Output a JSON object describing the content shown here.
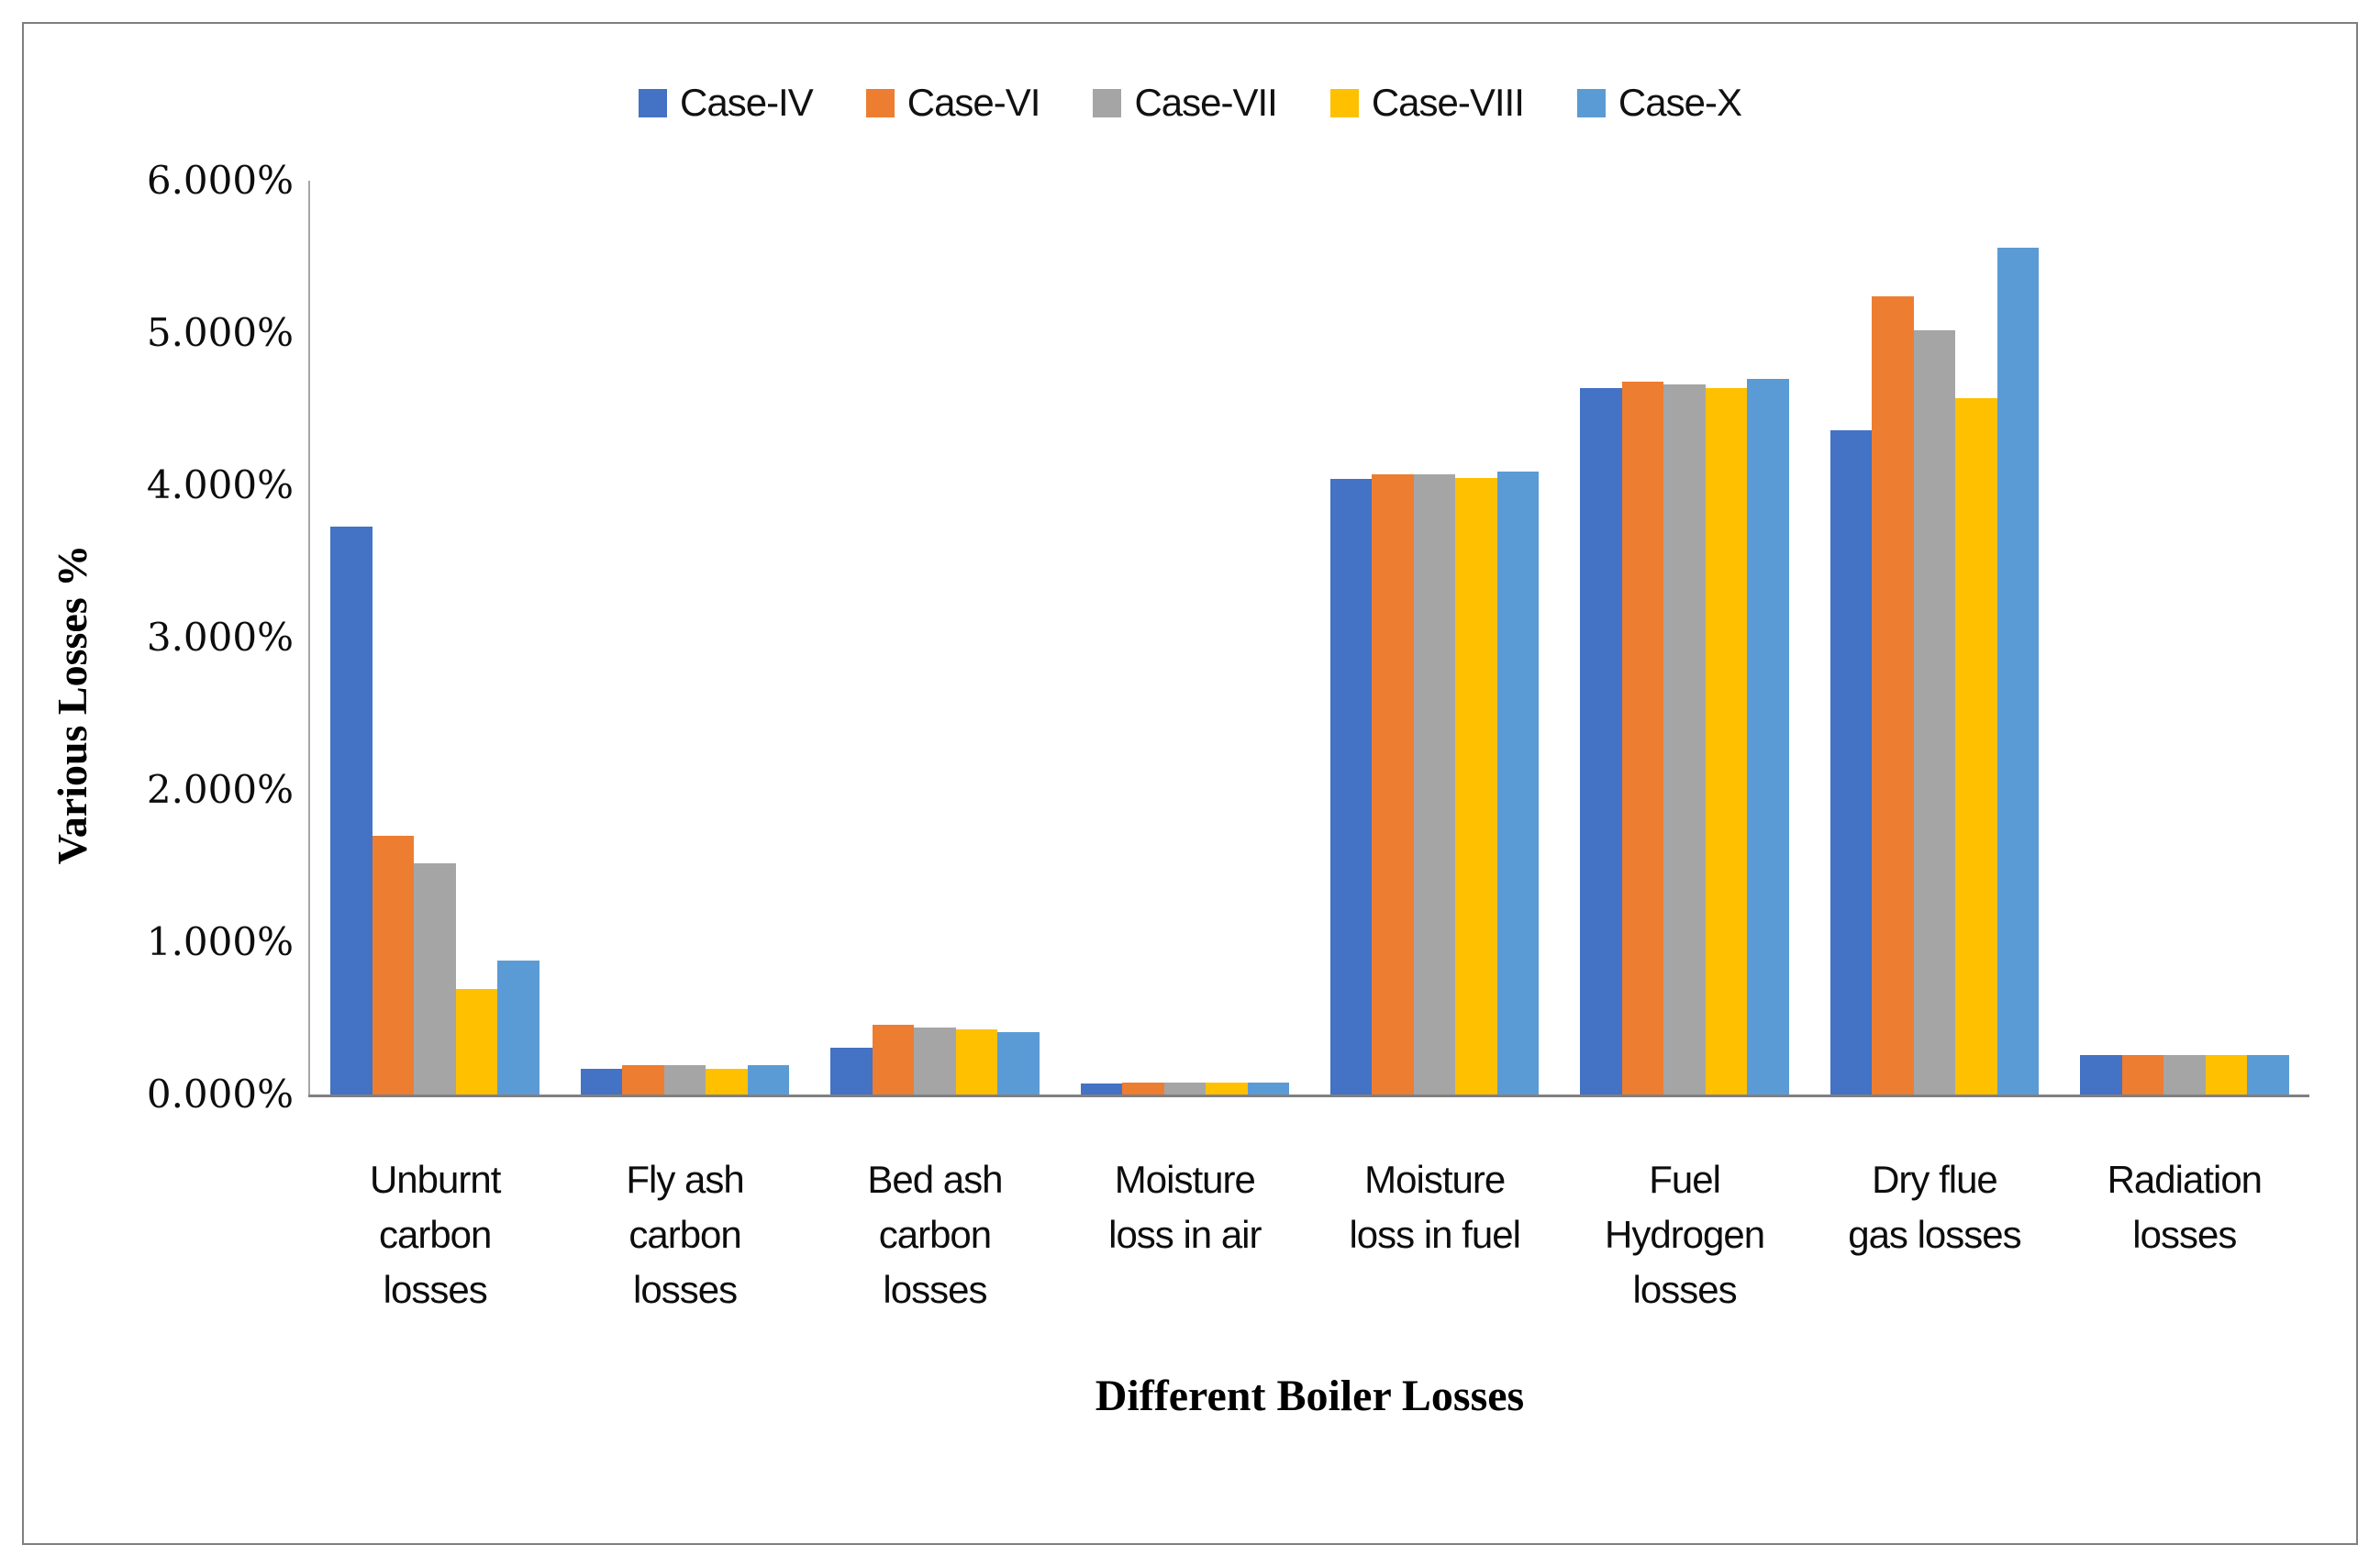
{
  "chart_data": {
    "type": "bar",
    "title": "",
    "xlabel": "Different Boiler Losses",
    "ylabel": "Various Losses %",
    "ylim": [
      0,
      6
    ],
    "grid": false,
    "legend_position": "top",
    "yticks": [
      {
        "value": 0,
        "label": "0.000%"
      },
      {
        "value": 1,
        "label": "1.000%"
      },
      {
        "value": 2,
        "label": "2.000%"
      },
      {
        "value": 3,
        "label": "3.000%"
      },
      {
        "value": 4,
        "label": "4.000%"
      },
      {
        "value": 5,
        "label": "5.000%"
      },
      {
        "value": 6,
        "label": "6.000%"
      }
    ],
    "categories": [
      {
        "label": "Unburnt carbon losses",
        "lines": [
          "Unburnt",
          "carbon",
          "losses"
        ]
      },
      {
        "label": "Fly ash carbon losses",
        "lines": [
          "Fly ash",
          "carbon",
          "losses"
        ]
      },
      {
        "label": "Bed ash carbon losses",
        "lines": [
          "Bed ash",
          "carbon",
          "losses"
        ]
      },
      {
        "label": "Moisture loss in air",
        "lines": [
          "Moisture",
          "loss in air"
        ]
      },
      {
        "label": "Moisture loss in fuel",
        "lines": [
          "Moisture",
          "loss in fuel"
        ]
      },
      {
        "label": "Fuel Hydrogen losses",
        "lines": [
          "Fuel",
          "Hydrogen",
          "losses"
        ]
      },
      {
        "label": "Dry flue gas losses",
        "lines": [
          "Dry flue",
          "gas losses"
        ]
      },
      {
        "label": "Radiation losses",
        "lines": [
          "Radiation",
          "losses"
        ]
      }
    ],
    "series": [
      {
        "name": "Case-IV",
        "color": "#4472C4",
        "values": [
          3.73,
          0.17,
          0.31,
          0.07,
          4.04,
          4.64,
          4.36,
          0.26
        ]
      },
      {
        "name": "Case-VI",
        "color": "#ED7D31",
        "values": [
          1.7,
          0.19,
          0.46,
          0.08,
          4.07,
          4.68,
          5.24,
          0.26
        ]
      },
      {
        "name": "Case-VII",
        "color": "#A5A5A5",
        "values": [
          1.52,
          0.19,
          0.44,
          0.08,
          4.07,
          4.66,
          5.02,
          0.26
        ]
      },
      {
        "name": "Case-VIII",
        "color": "#FFC000",
        "values": [
          0.69,
          0.17,
          0.43,
          0.08,
          4.05,
          4.64,
          4.57,
          0.26
        ]
      },
      {
        "name": "Case-X",
        "color": "#5B9BD5",
        "values": [
          0.88,
          0.19,
          0.41,
          0.08,
          4.09,
          4.7,
          5.56,
          0.26
        ]
      }
    ]
  }
}
